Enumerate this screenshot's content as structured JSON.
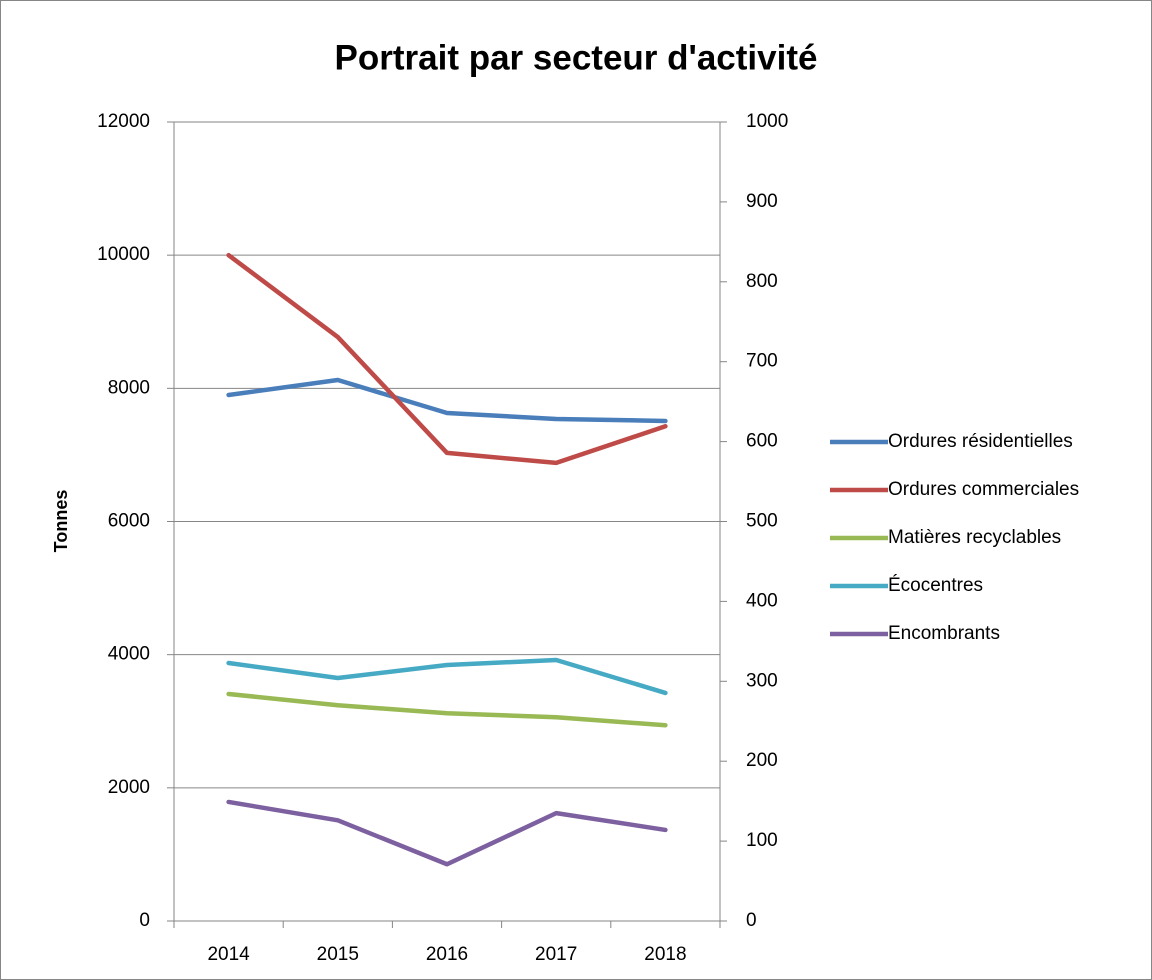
{
  "chart_data": {
    "type": "line",
    "title": "Portrait par secteur d'activité",
    "y_label": "Tonnes",
    "categories": [
      "2014",
      "2015",
      "2016",
      "2017",
      "2018"
    ],
    "series": [
      {
        "name": "Ordures résidentielles",
        "color": "#4a7ebb",
        "values": [
          7900,
          8125,
          7630,
          7540,
          7510
        ]
      },
      {
        "name": "Ordures commerciales",
        "color": "#be4b48",
        "values": [
          10000,
          8770,
          7030,
          6880,
          7430
        ]
      },
      {
        "name": "Matières recyclables",
        "color": "#98b954",
        "values": [
          3410,
          3240,
          3120,
          3060,
          2940
        ]
      },
      {
        "name": "Écocentres",
        "color": "#46aac5",
        "values": [
          3875,
          3650,
          3845,
          3920,
          3425
        ]
      },
      {
        "name": "Encombrants",
        "color": "#7d60a0",
        "values": [
          149,
          126,
          71,
          135,
          114
        ],
        "axis": "y2"
      }
    ],
    "ylim": [
      0,
      12000
    ],
    "yticks": [
      0,
      2000,
      4000,
      6000,
      8000,
      10000,
      12000
    ],
    "y2lim": [
      0,
      1000
    ],
    "y2ticks": [
      0,
      100,
      200,
      300,
      400,
      500,
      600,
      700,
      800,
      900,
      1000
    ],
    "grid": true,
    "legend": "right"
  }
}
